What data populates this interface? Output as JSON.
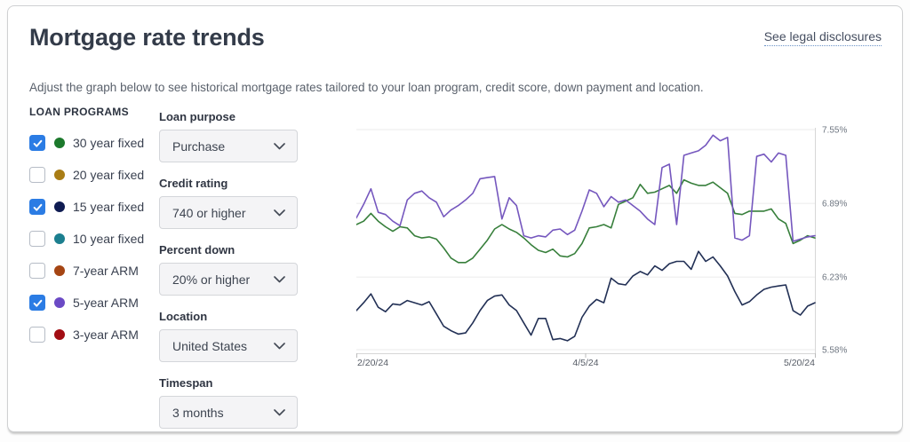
{
  "header": {
    "title": "Mortgage rate trends",
    "disclosures_link": "See legal disclosures",
    "subtitle": "Adjust the graph below to see historical mortgage rates tailored to your loan program, credit score, down payment and location."
  },
  "loan_programs": {
    "heading": "LOAN PROGRAMS",
    "items": [
      {
        "label": "30 year fixed",
        "checked": true,
        "dot_color": "#1c792c"
      },
      {
        "label": "20 year fixed",
        "checked": false,
        "dot_color": "#a97d15"
      },
      {
        "label": "15 year fixed",
        "checked": true,
        "dot_color": "#0f1b52"
      },
      {
        "label": "10 year fixed",
        "checked": false,
        "dot_color": "#1c7f8f"
      },
      {
        "label": "7-year ARM",
        "checked": false,
        "dot_color": "#a54513"
      },
      {
        "label": "5-year ARM",
        "checked": true,
        "dot_color": "#6b4ac5"
      },
      {
        "label": "3-year ARM",
        "checked": false,
        "dot_color": "#a20d13"
      }
    ],
    "checkbox_checked_color": "#2b7ce4"
  },
  "filters": {
    "items": [
      {
        "label": "Loan purpose",
        "value": "Purchase"
      },
      {
        "label": "Credit rating",
        "value": "740 or higher"
      },
      {
        "label": "Percent down",
        "value": "20% or higher"
      },
      {
        "label": "Location",
        "value": "United States"
      },
      {
        "label": "Timespan",
        "value": "3 months"
      }
    ]
  },
  "chart_data": {
    "type": "line",
    "x_tick_labels": [
      "2/20/24",
      "4/5/24",
      "5/20/24"
    ],
    "y_tick_values": [
      7.55,
      6.89,
      6.23,
      5.58
    ],
    "y_tick_labels": [
      "7.55%",
      "6.89%",
      "6.23%",
      "5.58%"
    ],
    "ylim": [
      5.54,
      7.67
    ],
    "grid": "horizontal",
    "legend_position": "none (series colors keyed to loan-program dots)",
    "series": [
      {
        "name": "30 year fixed",
        "color": "#377f3b",
        "values": [
          6.7,
          6.73,
          6.8,
          6.73,
          6.68,
          6.64,
          6.68,
          6.67,
          6.6,
          6.58,
          6.59,
          6.57,
          6.49,
          6.4,
          6.36,
          6.36,
          6.4,
          6.48,
          6.56,
          6.66,
          6.7,
          6.66,
          6.63,
          6.58,
          6.52,
          6.47,
          6.45,
          6.48,
          6.42,
          6.41,
          6.44,
          6.53,
          6.67,
          6.68,
          6.7,
          6.67,
          6.88,
          6.91,
          6.94,
          7.06,
          6.98,
          6.99,
          7.02,
          7.05,
          6.98,
          7.1,
          7.07,
          7.05,
          7.05,
          7.08,
          7.03,
          6.98,
          6.8,
          6.79,
          6.82,
          6.82,
          6.82,
          6.84,
          6.75,
          6.71,
          6.53,
          6.56,
          6.6,
          6.58
        ]
      },
      {
        "name": "15 year fixed",
        "color": "#223055",
        "values": [
          5.93,
          6.0,
          6.08,
          5.96,
          5.92,
          5.99,
          5.98,
          6.02,
          6.0,
          5.98,
          6.01,
          5.9,
          5.79,
          5.75,
          5.72,
          5.73,
          5.82,
          5.93,
          6.02,
          6.06,
          6.07,
          5.98,
          5.93,
          5.82,
          5.71,
          5.86,
          5.86,
          5.67,
          5.68,
          5.66,
          5.7,
          5.87,
          5.97,
          6.03,
          6.0,
          6.22,
          6.17,
          6.16,
          6.24,
          6.28,
          6.25,
          6.33,
          6.29,
          6.35,
          6.37,
          6.37,
          6.3,
          6.46,
          6.37,
          6.41,
          6.33,
          6.24,
          6.1,
          5.98,
          6.01,
          6.07,
          6.12,
          6.14,
          6.15,
          6.16,
          5.93,
          5.89,
          5.97,
          6.0
        ]
      },
      {
        "name": "5-year ARM",
        "color": "#7557be",
        "values": [
          6.76,
          6.88,
          7.02,
          6.81,
          6.79,
          6.73,
          6.69,
          6.92,
          6.98,
          7.0,
          6.94,
          6.9,
          6.77,
          6.83,
          6.87,
          6.92,
          6.98,
          7.11,
          7.12,
          7.13,
          6.75,
          6.94,
          6.87,
          6.6,
          6.58,
          6.6,
          6.59,
          6.65,
          6.66,
          6.61,
          6.65,
          6.82,
          7.01,
          6.98,
          6.86,
          6.95,
          6.9,
          6.92,
          6.87,
          6.82,
          6.75,
          6.7,
          7.21,
          7.24,
          6.7,
          7.32,
          7.34,
          7.36,
          7.41,
          7.5,
          7.45,
          7.48,
          6.58,
          6.56,
          6.6,
          7.31,
          7.33,
          7.26,
          7.34,
          7.32,
          6.55,
          6.57,
          6.59,
          6.6
        ]
      }
    ]
  }
}
